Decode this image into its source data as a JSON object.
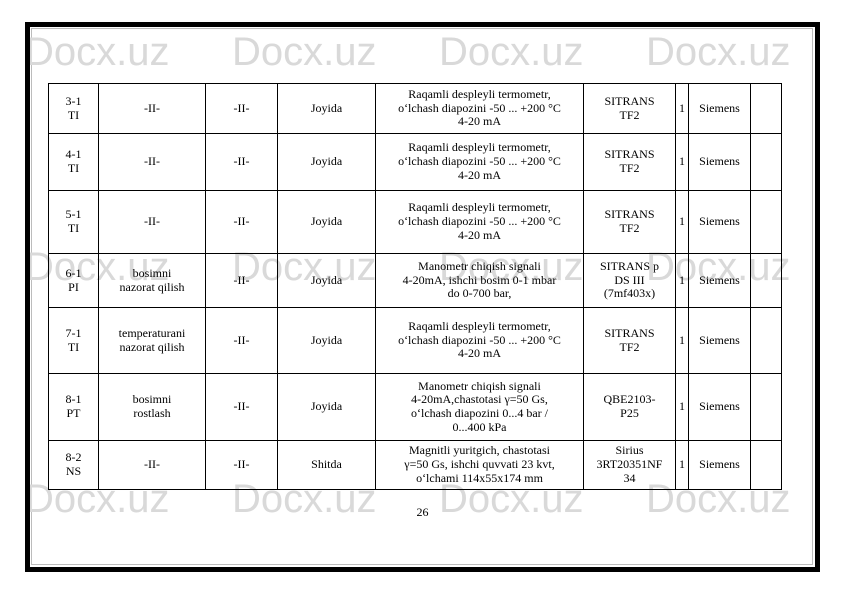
{
  "page": {
    "number": "26",
    "watermark_text": "Docx.uz"
  },
  "colors": {
    "watermark": "#d9d9d9",
    "page_border": "#000000",
    "table_border": "#000000"
  },
  "table": {
    "rows": [
      {
        "tag": "3-1\nTI",
        "duty": "-II-",
        "ref": "-II-",
        "place": "Joyida",
        "spec": "Raqamli despleyli termometr,\no‘lchash diapozini -50 ... +200 °C\n4-20 mA",
        "model": "SITRANS\nTF2",
        "qty": "1",
        "maker": "Siemens",
        "note": ""
      },
      {
        "tag": "4-1\nTI",
        "duty": "-II-",
        "ref": "-II-",
        "place": "Joyida",
        "spec": "Raqamli despleyli termometr,\no‘lchash diapozini -50 ... +200 °C\n4-20 mA",
        "model": "SITRANS\nTF2",
        "qty": "1",
        "maker": "Siemens",
        "note": ""
      },
      {
        "tag": "5-1\nTI",
        "duty": "-II-",
        "ref": "-II-",
        "place": "Joyida",
        "spec": "Raqamli despleyli termometr,\no‘lchash diapozini -50 ... +200 °C\n4-20 mA",
        "model": "SITRANS\nTF2",
        "qty": "1",
        "maker": "Siemens",
        "note": ""
      },
      {
        "tag": "6-1\nPI",
        "duty": "bosimni\nnazorat qilish",
        "ref": "-II-",
        "place": "Joyida",
        "spec": "Manometr chiqish signali\n4-20mA, ishchi bosim 0-1 mbar\ndo 0-700 bar,",
        "model": "SITRANS p\nDS III\n(7mf403x)",
        "qty": "1",
        "maker": "Siemens",
        "note": ""
      },
      {
        "tag": "7-1\nTI",
        "duty": "temperaturani\nnazorat qilish",
        "ref": "-II-",
        "place": "Joyida",
        "spec": "Raqamli despleyli termometr,\no‘lchash diapozini -50 ... +200 °C\n4-20 mA",
        "model": "SITRANS\nTF2",
        "qty": "1",
        "maker": "Siemens",
        "note": ""
      },
      {
        "tag": "8-1\nPT",
        "duty": "bosimni\nrostlash",
        "ref": "-II-",
        "place": "Joyida",
        "spec": "Manometr chiqish signali\n4-20mA,chastotasi γ=50 Gs,\no‘lchash diapozini 0...4 bar /\n0...400 kPa",
        "model": "QBE2103-\nP25",
        "qty": "1",
        "maker": "Siemens",
        "note": ""
      },
      {
        "tag": "8-2\nNS",
        "duty": "-II-",
        "ref": "-II-",
        "place": "Shitda",
        "spec": "Magnitli yuritgich, chastotasi\nγ=50 Gs, ishchi quvvati 23 kvt,\no‘lchami 114x55x174 mm",
        "model": "Sirius\n3RT20351NF\n34",
        "qty": "1",
        "maker": "Siemens",
        "note": ""
      }
    ]
  }
}
